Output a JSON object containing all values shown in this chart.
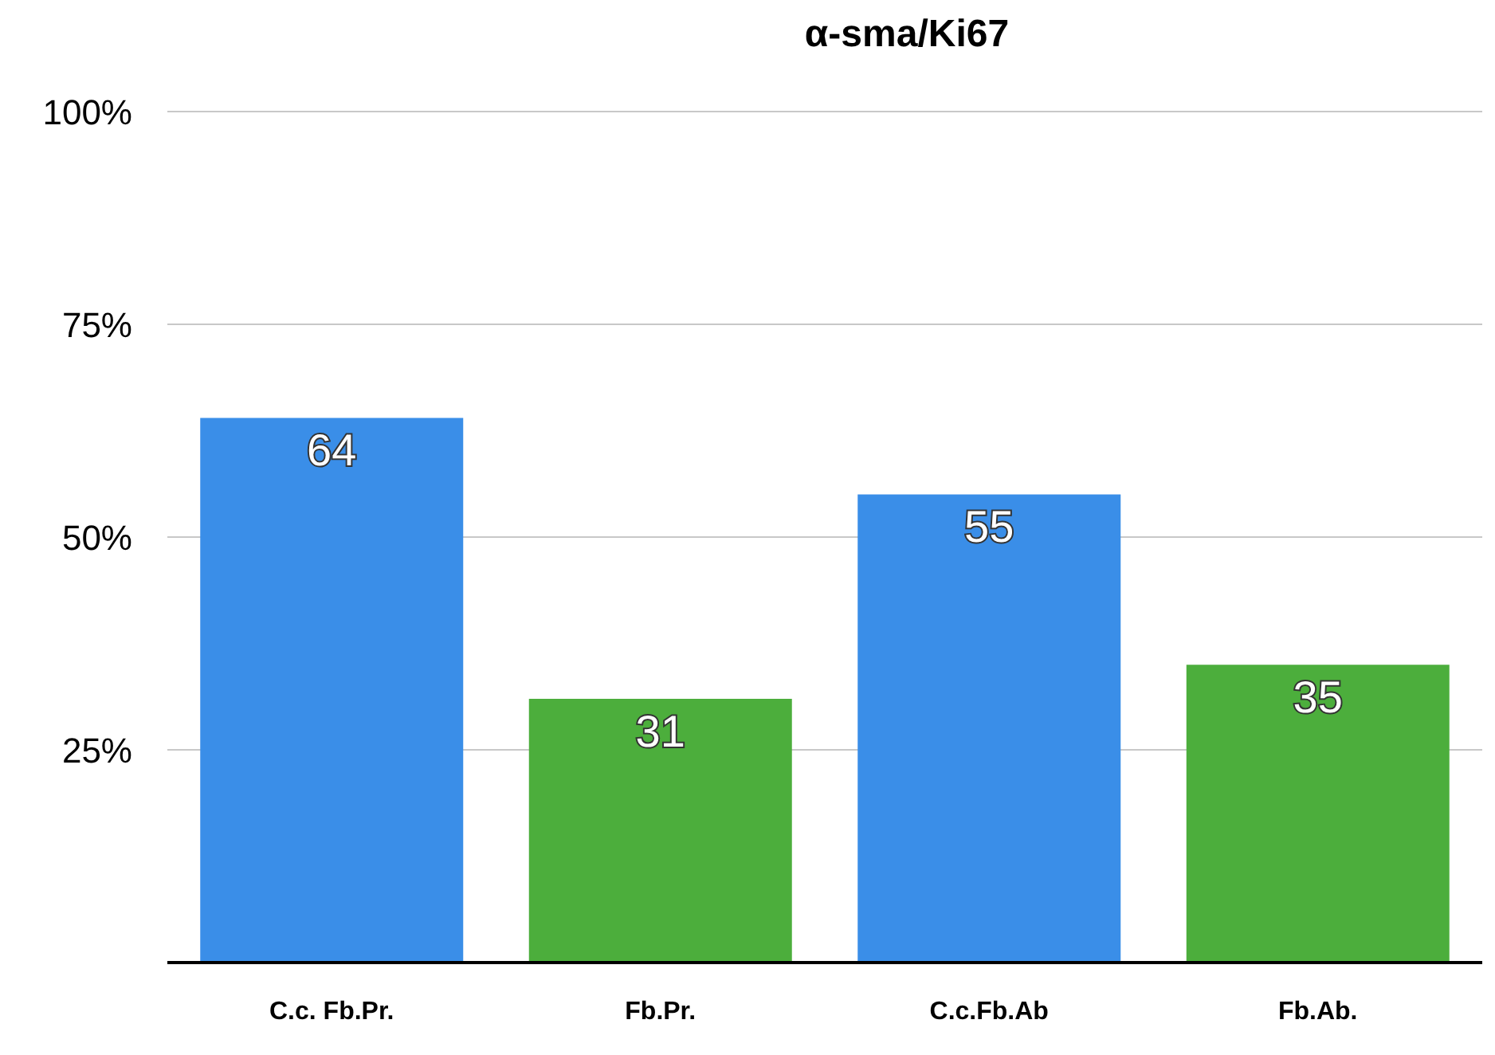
{
  "chart_data": {
    "type": "bar",
    "title": "α-sma/Ki67",
    "categories": [
      "C.c. Fb.Pr.",
      "Fb.Pr.",
      "C.c.Fb.Ab",
      "Fb.Ab."
    ],
    "values": [
      64,
      31,
      55,
      35
    ],
    "colors": [
      "#3a8ee8",
      "#4cae3c",
      "#3a8ee8",
      "#4cae3c"
    ],
    "ylim": [
      0,
      100
    ],
    "yticks": [
      {
        "value": 25,
        "label": "25%"
      },
      {
        "value": 50,
        "label": "50%"
      },
      {
        "value": 75,
        "label": "75%"
      },
      {
        "value": 100,
        "label": "100%"
      }
    ],
    "grid": "y",
    "data_labels": true
  }
}
